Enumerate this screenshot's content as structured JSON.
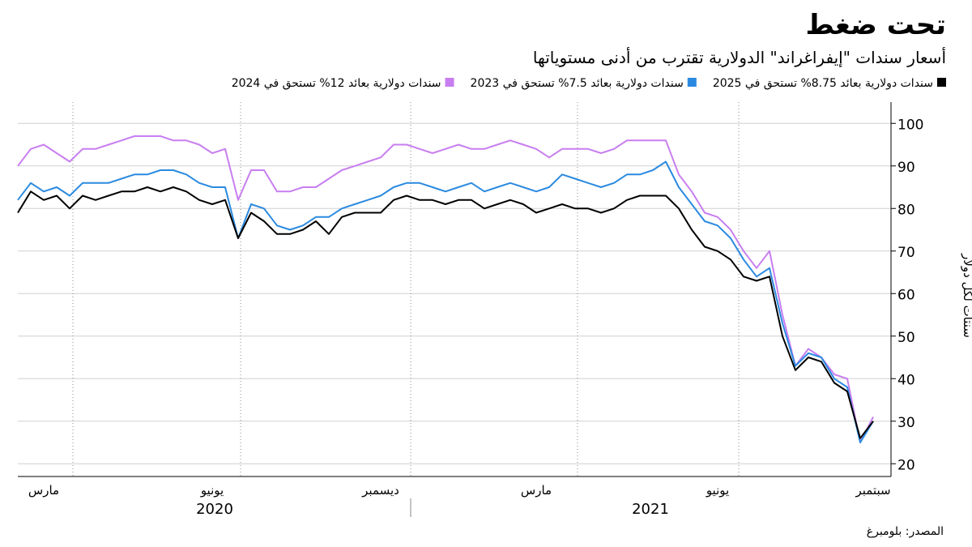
{
  "chart_data": {
    "type": "line",
    "title": "تحت ضغط",
    "subtitle": "أسعار سندات \"إيفراغراند\" الدولارية تقترب من أدنى مستوياتها",
    "y_label": "سنتات لكل دولار",
    "source": "المصدر: بلومبرغ",
    "years": [
      "2020",
      "2021"
    ],
    "categories": [
      null,
      null,
      "مارس",
      null,
      null,
      null,
      null,
      null,
      null,
      null,
      null,
      null,
      null,
      null,
      null,
      "يونيو",
      null,
      null,
      null,
      null,
      null,
      null,
      null,
      null,
      null,
      null,
      null,
      null,
      "ديسمبر",
      null,
      null,
      null,
      null,
      null,
      null,
      null,
      null,
      null,
      null,
      null,
      "مارس",
      null,
      null,
      null,
      null,
      null,
      null,
      null,
      null,
      null,
      null,
      null,
      null,
      null,
      "يونيو",
      null,
      null,
      null,
      null,
      null,
      null,
      null,
      null,
      null,
      null,
      null,
      "سبتمبر"
    ],
    "series": [
      {
        "name": "سندات دولارية بعائد 8.75% تستحق في 2025",
        "color": "#000000",
        "values": [
          79,
          84,
          82,
          83,
          80,
          83,
          82,
          83,
          84,
          84,
          85,
          84,
          85,
          84,
          82,
          81,
          82,
          73,
          79,
          77,
          74,
          74,
          75,
          77,
          74,
          78,
          79,
          79,
          79,
          82,
          83,
          82,
          82,
          81,
          82,
          82,
          80,
          81,
          82,
          81,
          79,
          80,
          81,
          80,
          80,
          79,
          80,
          82,
          83,
          83,
          83,
          80,
          75,
          71,
          70,
          68,
          64,
          63,
          64,
          50,
          42,
          45,
          44,
          39,
          37,
          26,
          30
        ]
      },
      {
        "name": "سندات دولارية بعائد 7.5% تستحق في 2023",
        "color": "#2b8ae0",
        "values": [
          82,
          86,
          84,
          85,
          83,
          86,
          86,
          86,
          87,
          88,
          88,
          89,
          89,
          88,
          86,
          85,
          85,
          73,
          81,
          80,
          76,
          75,
          76,
          78,
          78,
          80,
          81,
          82,
          83,
          85,
          86,
          86,
          85,
          84,
          85,
          86,
          84,
          85,
          86,
          85,
          84,
          85,
          88,
          87,
          86,
          85,
          86,
          88,
          88,
          89,
          91,
          85,
          81,
          77,
          76,
          73,
          68,
          64,
          66,
          53,
          43,
          46,
          45,
          40,
          38,
          25,
          30
        ]
      },
      {
        "name": "سندات دولارية بعائد 12% تستحق في 2024",
        "color": "#c87ef0",
        "values": [
          90,
          94,
          95,
          93,
          91,
          94,
          94,
          95,
          96,
          97,
          97,
          97,
          96,
          96,
          95,
          93,
          94,
          82,
          89,
          89,
          84,
          84,
          85,
          85,
          87,
          89,
          90,
          91,
          92,
          95,
          95,
          94,
          93,
          94,
          95,
          94,
          94,
          95,
          96,
          95,
          94,
          92,
          94,
          94,
          94,
          93,
          94,
          96,
          96,
          96,
          96,
          88,
          84,
          79,
          78,
          75,
          70,
          66,
          70,
          55,
          43,
          47,
          45,
          41,
          40,
          25,
          31
        ]
      }
    ],
    "ylim": [
      17,
      105
    ],
    "yticks": [
      20,
      30,
      40,
      50,
      60,
      70,
      80,
      90,
      100
    ],
    "grid": true
  }
}
